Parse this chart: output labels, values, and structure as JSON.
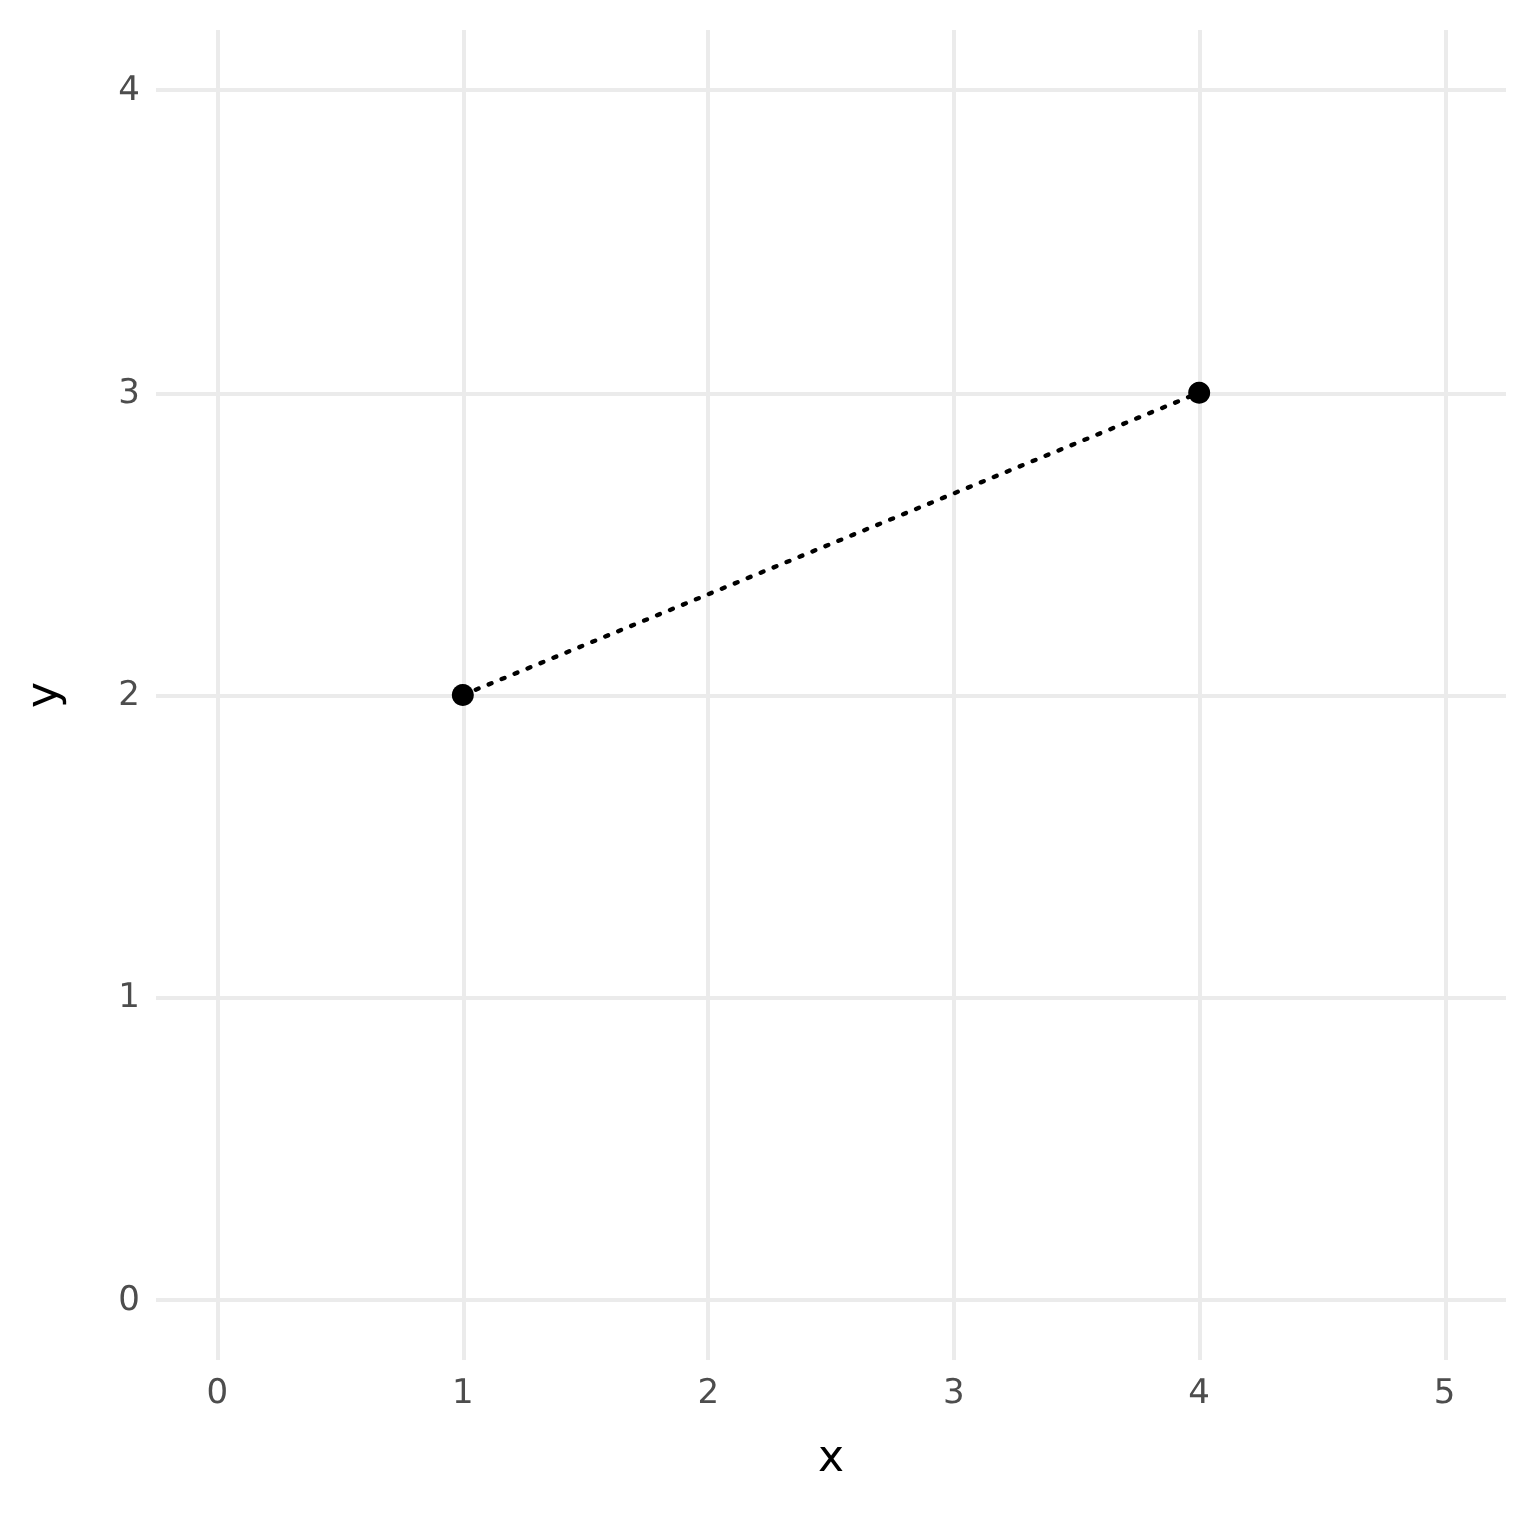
{
  "chart_data": {
    "type": "line",
    "xlabel": "x",
    "ylabel": "y",
    "x": [
      1,
      4
    ],
    "series": [
      {
        "color": "#000000",
        "values": [
          2,
          3
        ]
      }
    ],
    "xlim": [
      -0.25,
      5.25
    ],
    "xticks": [
      0,
      1,
      2,
      3,
      4,
      5
    ],
    "ylim": [
      -0.2,
      4.2
    ],
    "yticks": [
      0,
      1,
      2,
      3,
      4
    ],
    "grid": true,
    "marker": "circle",
    "line_style": "dotted"
  }
}
